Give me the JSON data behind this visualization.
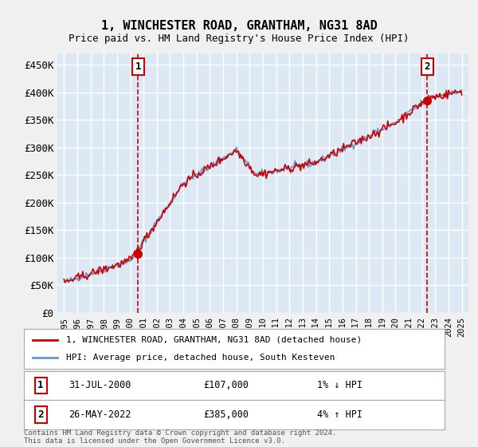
{
  "title": "1, WINCHESTER ROAD, GRANTHAM, NG31 8AD",
  "subtitle": "Price paid vs. HM Land Registry's House Price Index (HPI)",
  "hpi_label": "HPI: Average price, detached house, South Kesteven",
  "price_label": "1, WINCHESTER ROAD, GRANTHAM, NG31 8AD (detached house)",
  "sale1_date": "31-JUL-2000",
  "sale1_price": 107000,
  "sale1_hpi_diff": "1% ↓ HPI",
  "sale2_date": "26-MAY-2022",
  "sale2_price": 385000,
  "sale2_hpi_diff": "4% ↑ HPI",
  "sale1_year": 2000.58,
  "sale2_year": 2022.4,
  "ylim": [
    0,
    470000
  ],
  "yticks": [
    0,
    50000,
    100000,
    150000,
    200000,
    250000,
    300000,
    350000,
    400000,
    450000
  ],
  "xlim_start": 1994.5,
  "xlim_end": 2025.5,
  "bg_color": "#dce9f5",
  "plot_bg": "#dce9f5",
  "grid_color": "#ffffff",
  "red_color": "#cc0000",
  "blue_color": "#6699cc",
  "dashed_red": "#cc0000",
  "footer_text": "Contains HM Land Registry data © Crown copyright and database right 2024.\nThis data is licensed under the Open Government Licence v3.0.",
  "xticks": [
    1995,
    1996,
    1997,
    1998,
    1999,
    2000,
    2001,
    2002,
    2003,
    2004,
    2005,
    2006,
    2007,
    2008,
    2009,
    2010,
    2011,
    2012,
    2013,
    2014,
    2015,
    2016,
    2017,
    2018,
    2019,
    2020,
    2021,
    2022,
    2023,
    2024,
    2025
  ]
}
